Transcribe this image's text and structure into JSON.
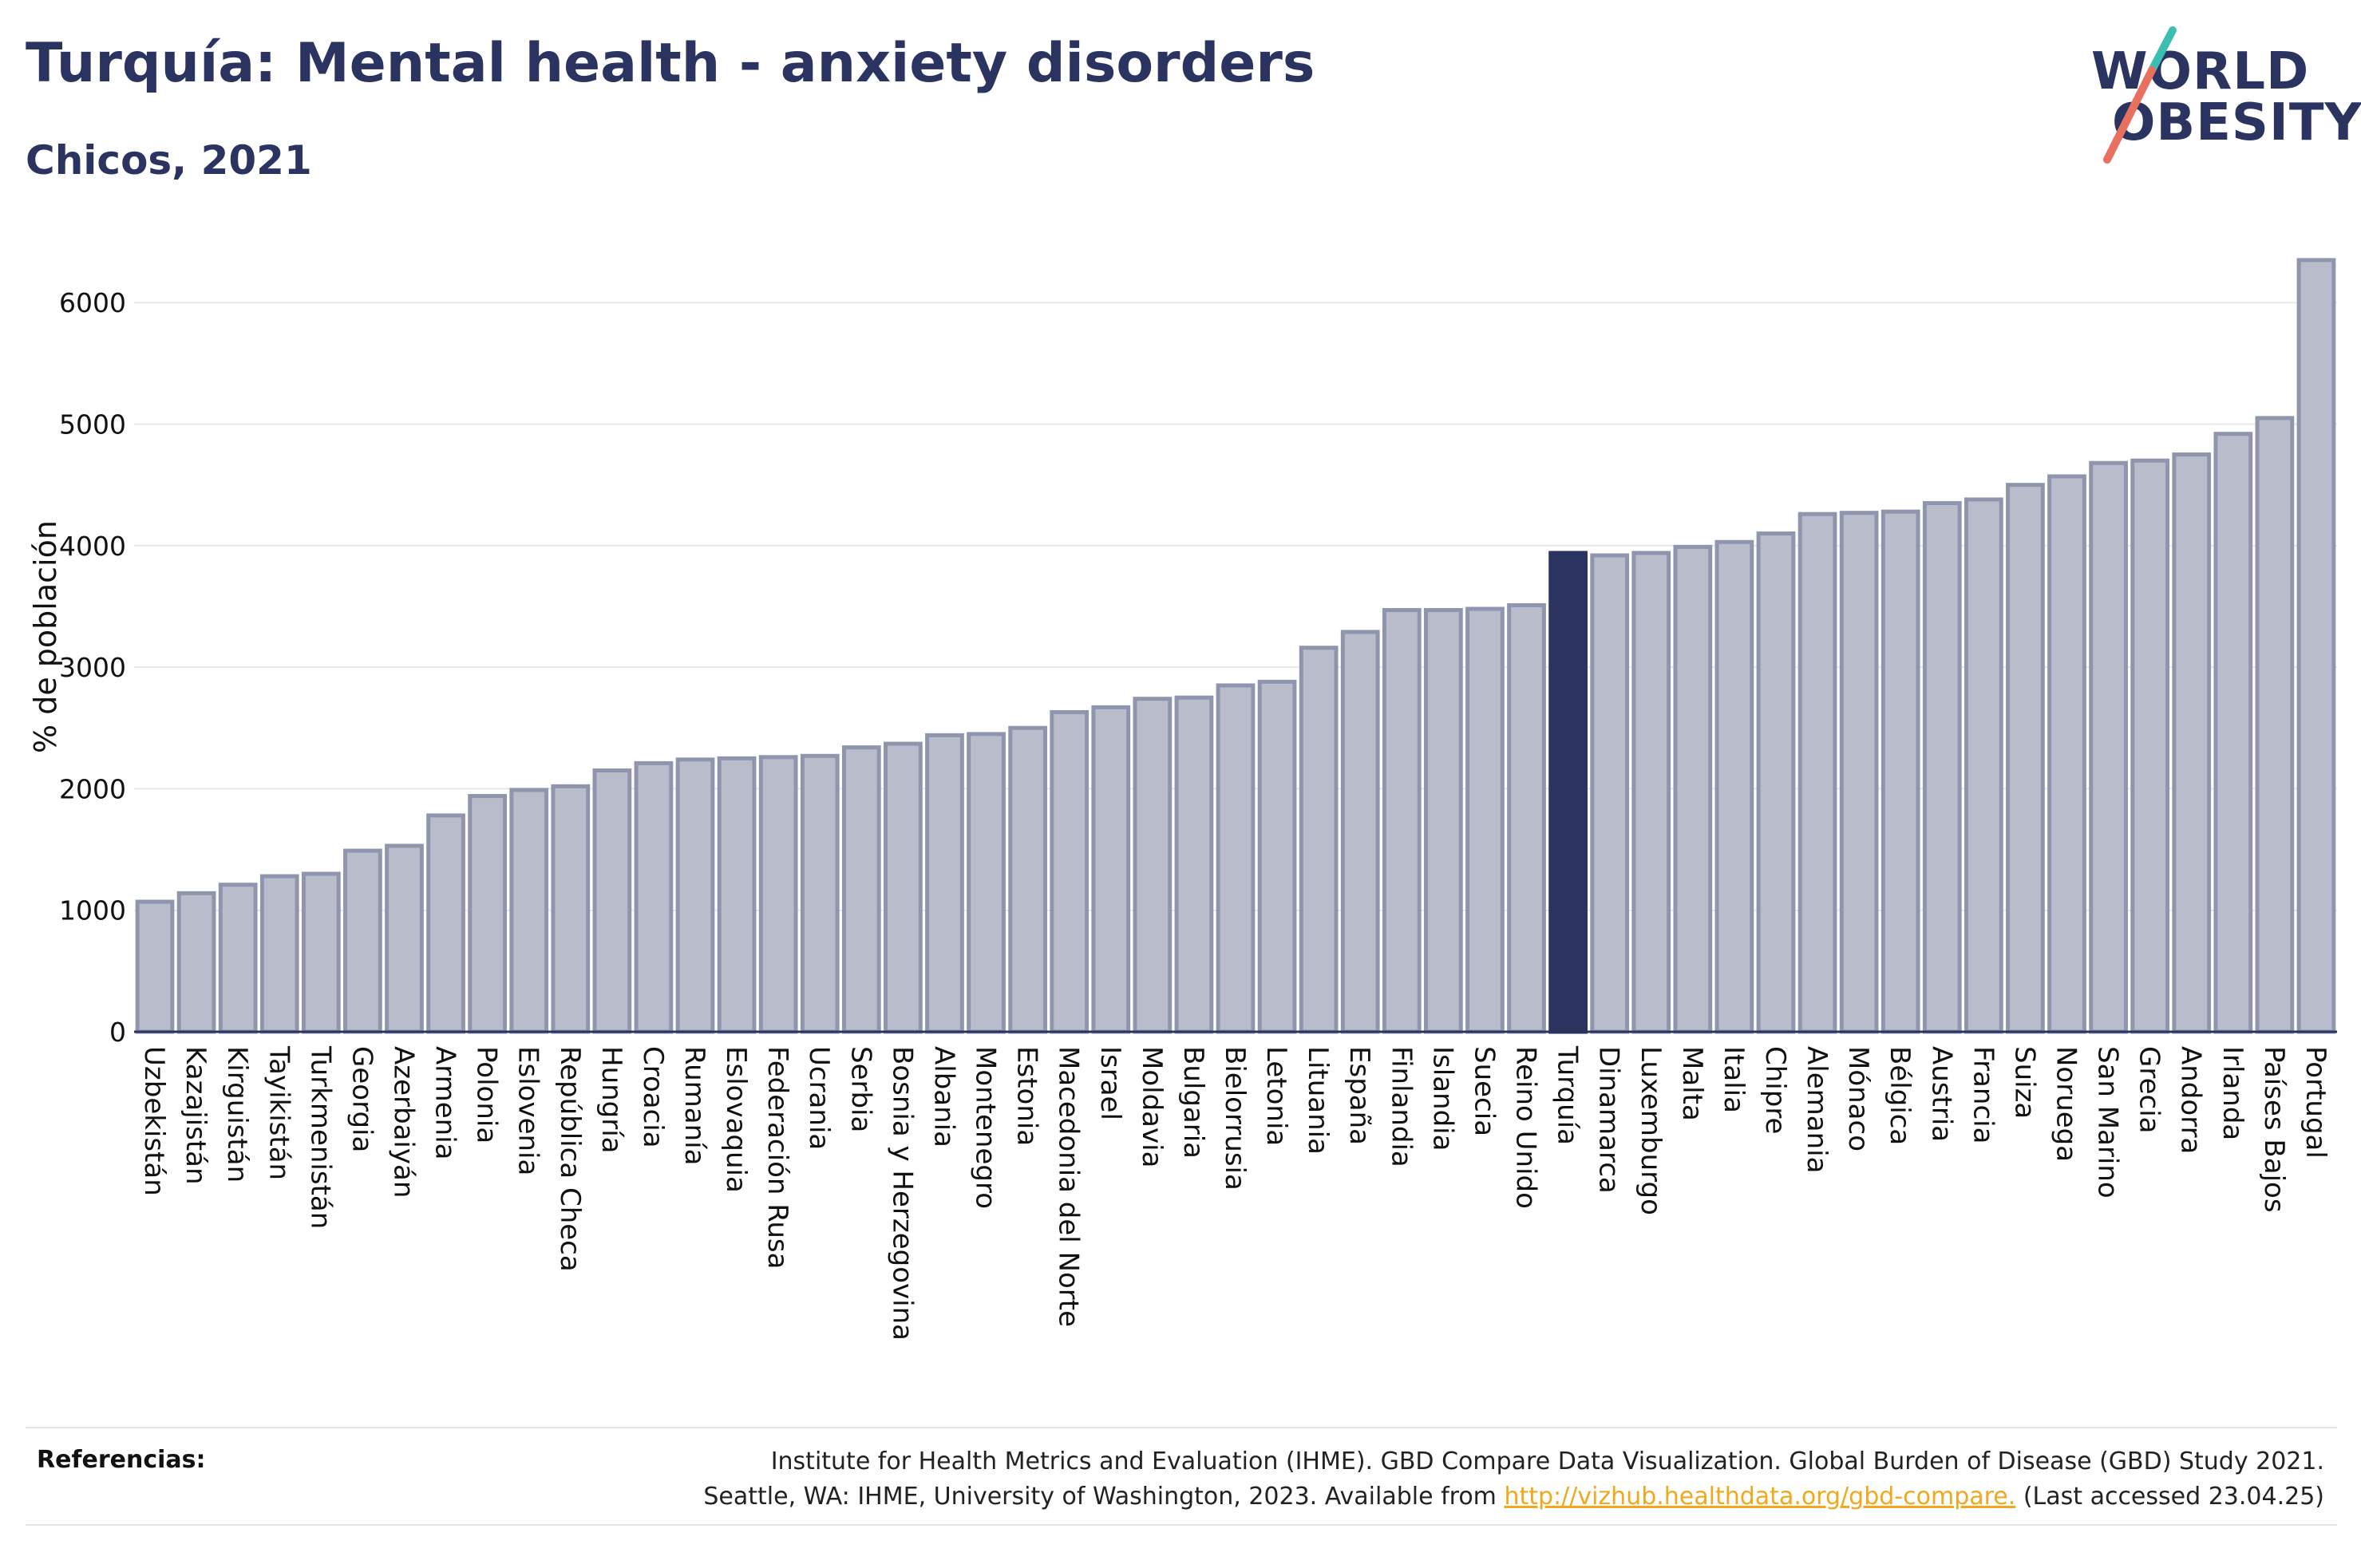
{
  "header": {
    "title": "Turquía: Mental health - anxiety disorders",
    "subtitle": "Chicos, 2021"
  },
  "logo": {
    "line1": "WORLD",
    "line2": "OBESITY",
    "colors": {
      "text": "#2b3361",
      "slash_top": "#3bbfb2",
      "slash_bottom": "#e8705e"
    }
  },
  "colors": {
    "bar": "#b8bccb",
    "bar_stroke": "#8f95ad",
    "highlight": "#2b3361",
    "grid": "#e8e8ec",
    "axis": "#2b3361"
  },
  "chart_data": {
    "type": "bar",
    "title": "Turquía: Mental health - anxiety disorders",
    "subtitle": "Chicos, 2021",
    "xlabel": "",
    "ylabel": "% de población",
    "ylim": [
      0,
      6500
    ],
    "yticks": [
      0,
      1000,
      2000,
      3000,
      4000,
      5000,
      6000
    ],
    "grid": true,
    "highlight": "Turquía",
    "categories": [
      "Uzbekistán",
      "Kazajistán",
      "Kirguistán",
      "Tayikistán",
      "Turkmenistán",
      "Georgia",
      "Azerbaiyán",
      "Armenia",
      "Polonia",
      "Eslovenia",
      "República Checa",
      "Hungría",
      "Croacia",
      "Rumanía",
      "Eslovaquia",
      "Federación Rusa",
      "Ucrania",
      "Serbia",
      "Bosnia y Herzegovina",
      "Albania",
      "Montenegro",
      "Estonia",
      "Macedonia del Norte",
      "Israel",
      "Moldavia",
      "Bulgaria",
      "Bielorrusia",
      "Letonia",
      "Lituania",
      "España",
      "Finlandia",
      "Islandia",
      "Suecia",
      "Reino Unido",
      "Turquía",
      "Dinamarca",
      "Luxemburgo",
      "Malta",
      "Italia",
      "Chipre",
      "Alemania",
      "Mónaco",
      "Bélgica",
      "Austria",
      "Francia",
      "Suiza",
      "Noruega",
      "San Marino",
      "Grecia",
      "Andorra",
      "Irlanda",
      "Países Bajos",
      "Portugal"
    ],
    "values": [
      1070,
      1140,
      1210,
      1280,
      1300,
      1490,
      1530,
      1780,
      1940,
      1990,
      2020,
      2150,
      2210,
      2240,
      2250,
      2260,
      2270,
      2340,
      2370,
      2440,
      2450,
      2500,
      2630,
      2670,
      2740,
      2750,
      2850,
      2880,
      3160,
      3290,
      3470,
      3470,
      3480,
      3510,
      3940,
      3920,
      3940,
      3990,
      4030,
      4100,
      4260,
      4270,
      4280,
      4350,
      4380,
      4500,
      4570,
      4680,
      4700,
      4750,
      4920,
      5050,
      6350
    ]
  },
  "footer": {
    "label": "Referencias:",
    "line1": "Institute for Health Metrics and Evaluation (IHME). GBD Compare Data Visualization. Global Burden of Disease (GBD) Study 2021.",
    "line2_pre": "Seattle, WA: IHME, University of Washington, 2023. Available from ",
    "link": "http://vizhub.healthdata.org/gbd-compare.",
    "line2_post": " (Last accessed 23.04.25)"
  }
}
